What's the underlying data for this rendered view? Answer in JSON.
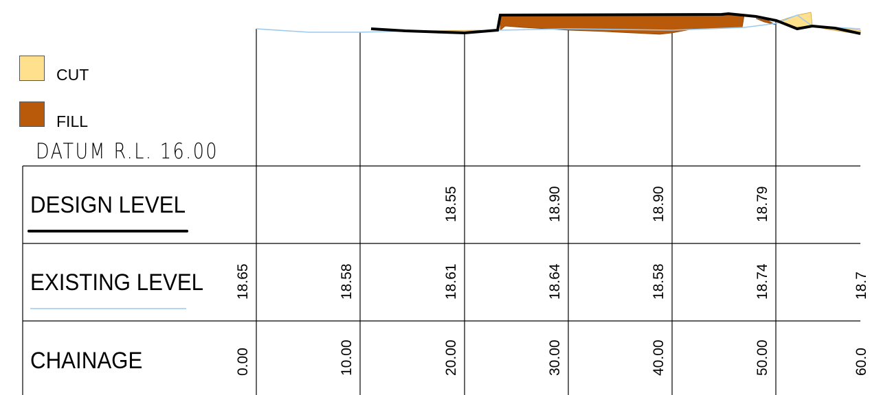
{
  "legend": {
    "cut": {
      "label": "CUT",
      "color": "#FFE08C"
    },
    "fill": {
      "label": "FILL",
      "color": "#B85A0A"
    }
  },
  "datum_label": "DATUM R.L. 16.00",
  "rows": {
    "design": {
      "label": "DESIGN LEVEL",
      "underline_color": "#000000"
    },
    "existing": {
      "label": "EXISTING LEVEL",
      "underline_color": "#9CC9EE"
    },
    "chainage": {
      "label": "CHAINAGE"
    }
  },
  "design_levels": [
    "",
    "",
    "18.55",
    "18.90",
    "18.90",
    "18.79",
    ""
  ],
  "existing_levels": [
    "18.65",
    "18.58",
    "18.61",
    "18.64",
    "18.58",
    "18.74",
    "18.7"
  ],
  "chainages": [
    "0.00",
    "10.00",
    "20.00",
    "30.00",
    "40.00",
    "50.00",
    "60.0"
  ],
  "colors": {
    "existing_line": "#9CC9EE",
    "design_line": "#000000",
    "grid": "#000000"
  }
}
